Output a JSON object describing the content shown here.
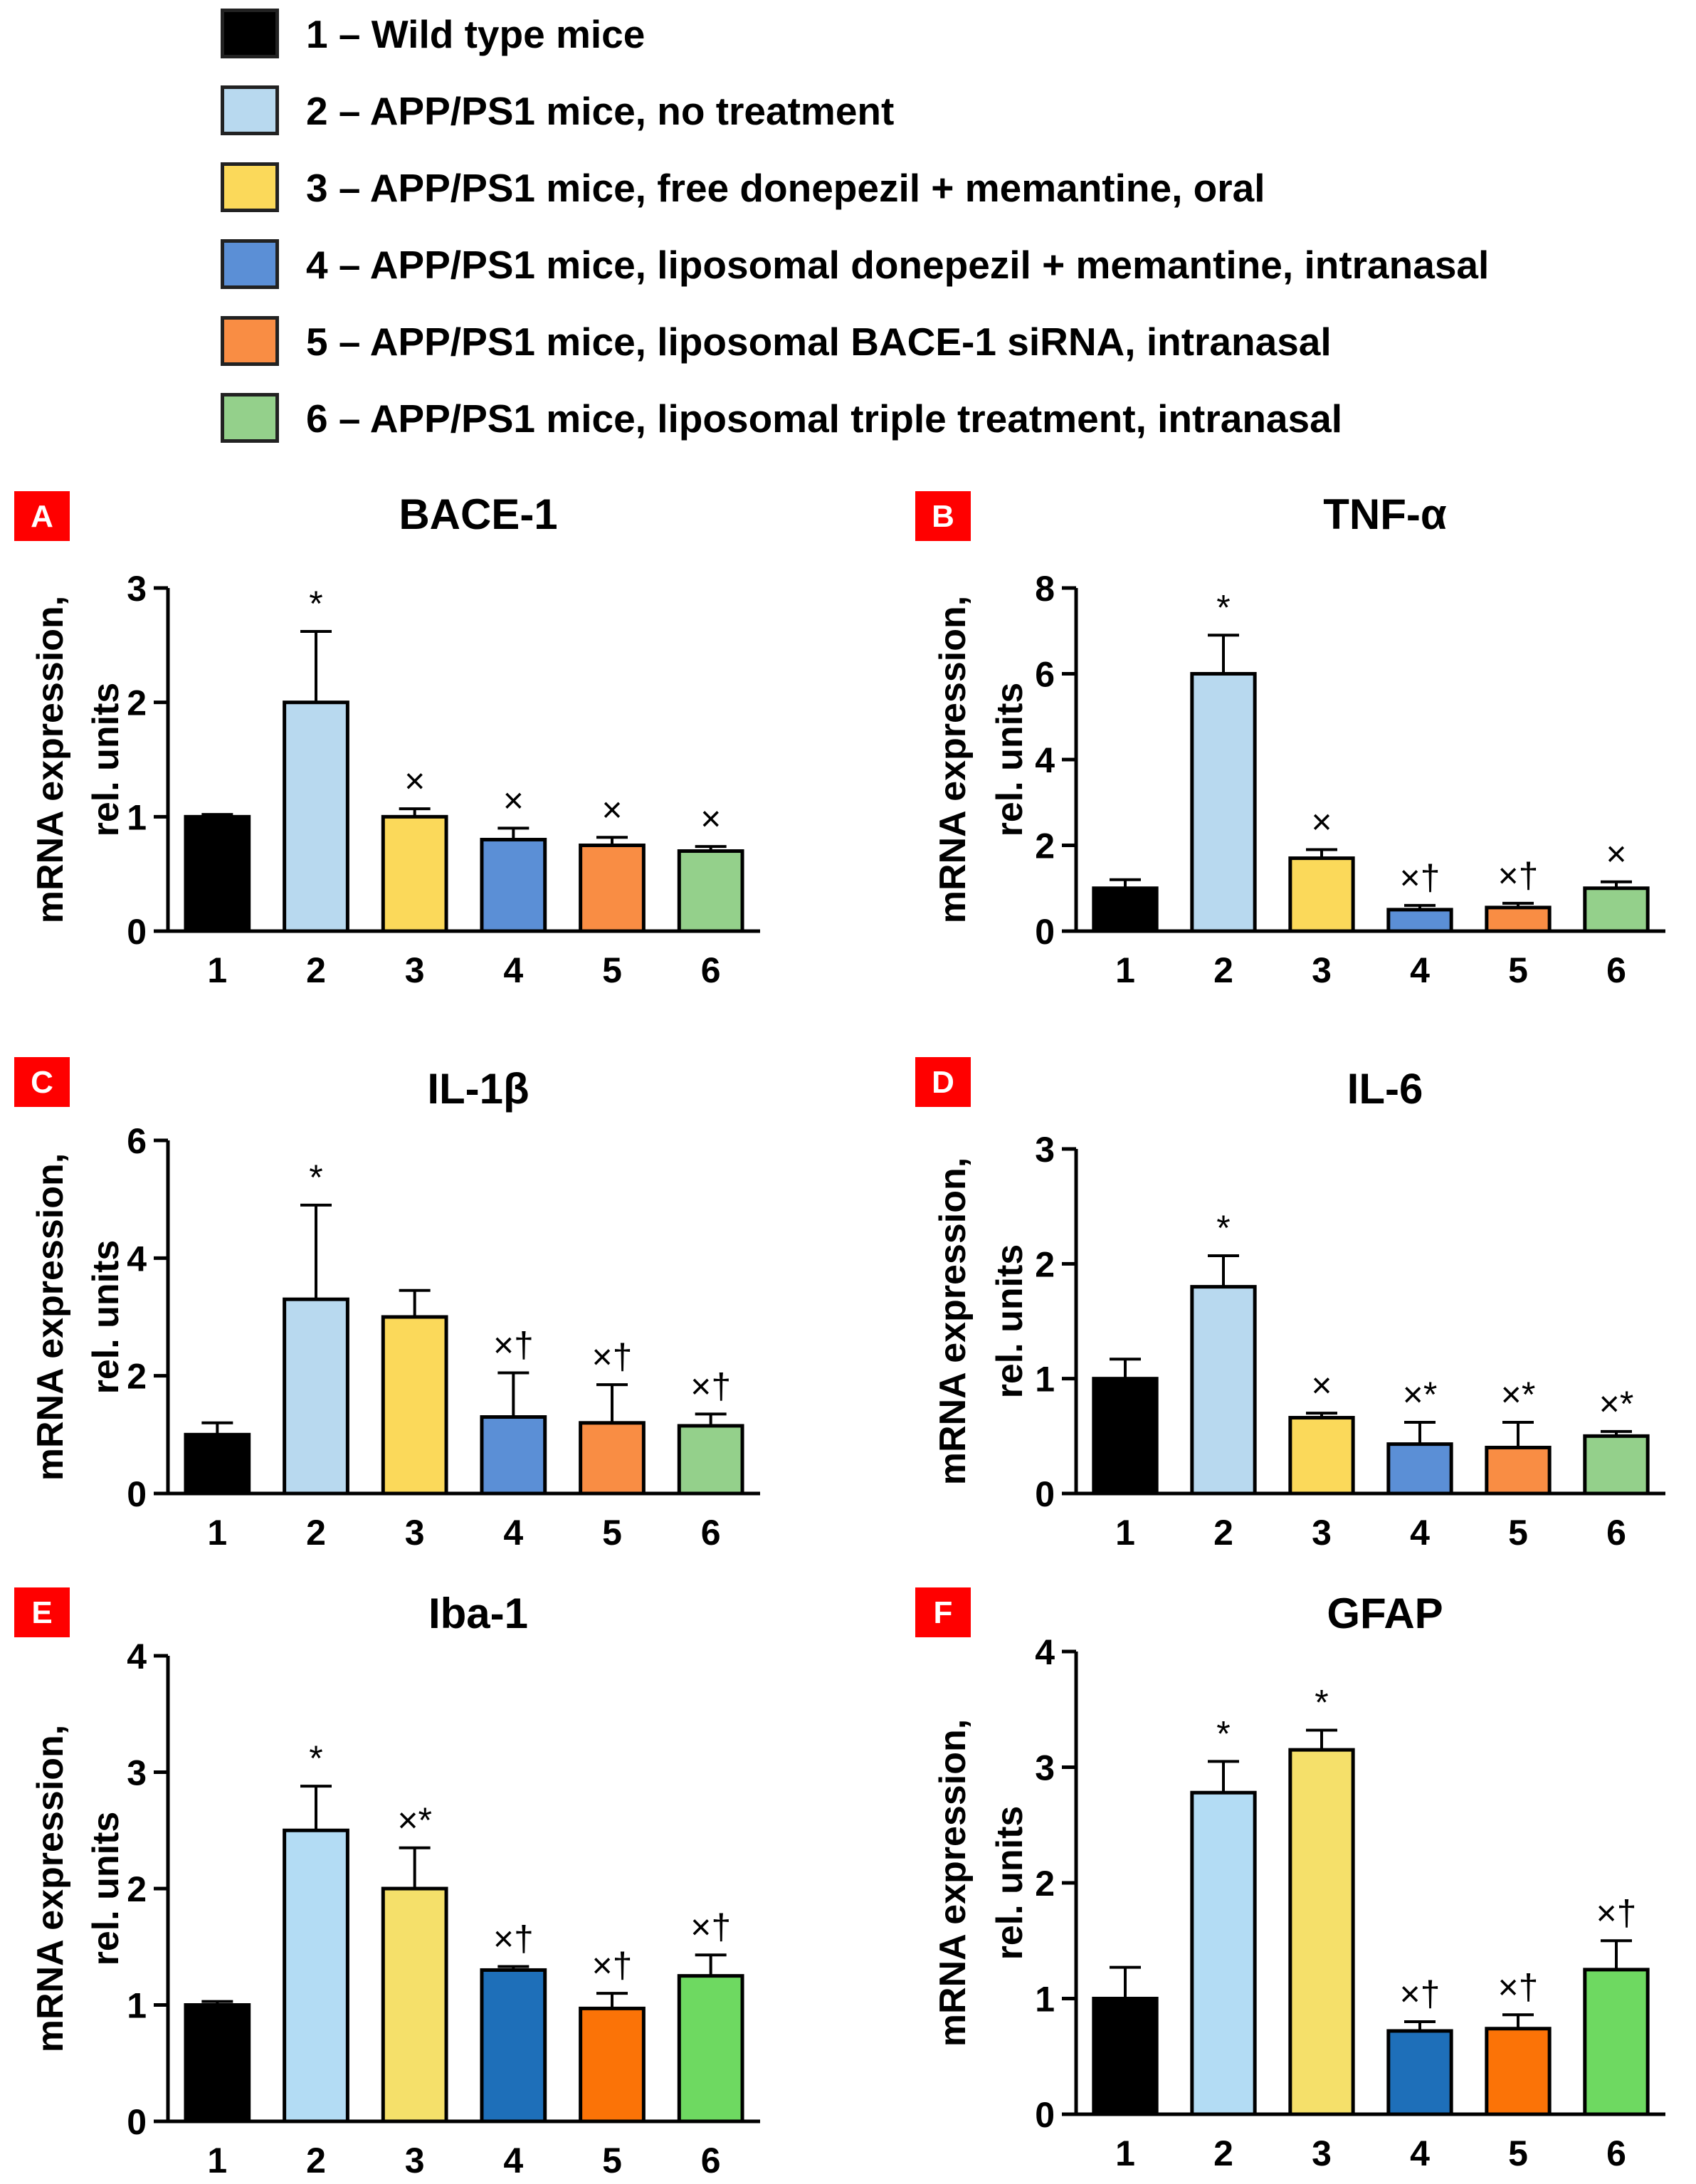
{
  "legend": [
    {
      "label": "1 – Wild type mice",
      "color": "#000000"
    },
    {
      "label": "2 – APP/PS1 mice, no treatment",
      "color": "#b8d9ef"
    },
    {
      "label": "3 – APP/PS1 mice, free donepezil + memantine, oral",
      "color": "#fbd95a"
    },
    {
      "label": "4 – APP/PS1 mice, liposomal donepezil + memantine, intranasal",
      "color": "#5b8fd6"
    },
    {
      "label": "5 – APP/PS1 mice, liposomal BACE-1 siRNA, intranasal",
      "color": "#f98d44"
    },
    {
      "label": "6 – APP/PS1 mice, liposomal triple treatment, intranasal",
      "color": "#94d08b"
    }
  ],
  "y_axis_label_line1": "mRNA expression,",
  "y_axis_label_line2": "rel. units",
  "chart_data": [
    {
      "panel": "A",
      "type": "bar",
      "title": "BACE-1",
      "categories": [
        "1",
        "2",
        "3",
        "4",
        "5",
        "6"
      ],
      "values": [
        1.0,
        2.0,
        1.0,
        0.8,
        0.75,
        0.7
      ],
      "errors": [
        0.02,
        0.62,
        0.07,
        0.1,
        0.07,
        0.04
      ],
      "annotations": [
        "",
        "*",
        "×",
        "×",
        "×",
        "×"
      ],
      "colors": [
        "#000000",
        "#b8d9ef",
        "#fbd95a",
        "#5b8fd6",
        "#f98d44",
        "#94d08b"
      ],
      "ylim": [
        0,
        3
      ],
      "yticks": [
        "0",
        "1",
        "2",
        "3"
      ],
      "xlabel": "",
      "ylabel": "mRNA expression, rel. units"
    },
    {
      "panel": "B",
      "type": "bar",
      "title": "TNF-α",
      "categories": [
        "1",
        "2",
        "3",
        "4",
        "5",
        "6"
      ],
      "values": [
        1.0,
        6.0,
        1.7,
        0.5,
        0.55,
        1.0
      ],
      "errors": [
        0.2,
        0.9,
        0.2,
        0.1,
        0.1,
        0.15
      ],
      "annotations": [
        "",
        "*",
        "×",
        "×†",
        "×†",
        "×"
      ],
      "colors": [
        "#000000",
        "#b8d9ef",
        "#fbd95a",
        "#5b8fd6",
        "#f98d44",
        "#94d08b"
      ],
      "ylim": [
        0,
        8
      ],
      "yticks": [
        "0",
        "2",
        "4",
        "6",
        "8"
      ],
      "xlabel": "",
      "ylabel": "mRNA expression, rel. units"
    },
    {
      "panel": "C",
      "type": "bar",
      "title": "IL-1β",
      "categories": [
        "1",
        "2",
        "3",
        "4",
        "5",
        "6"
      ],
      "values": [
        1.0,
        3.3,
        3.0,
        1.3,
        1.2,
        1.15
      ],
      "errors": [
        0.2,
        1.6,
        0.45,
        0.75,
        0.65,
        0.2
      ],
      "annotations": [
        "",
        "*",
        "",
        "×†",
        "×†",
        "×†"
      ],
      "colors": [
        "#000000",
        "#b8d9ef",
        "#fbd95a",
        "#5b8fd6",
        "#f98d44",
        "#94d08b"
      ],
      "ylim": [
        0,
        6
      ],
      "yticks": [
        "0",
        "2",
        "4",
        "6"
      ],
      "xlabel": "",
      "ylabel": "mRNA expression, rel. units"
    },
    {
      "panel": "D",
      "type": "bar",
      "title": "IL-6",
      "categories": [
        "1",
        "2",
        "3",
        "4",
        "5",
        "6"
      ],
      "values": [
        1.0,
        1.8,
        0.66,
        0.43,
        0.4,
        0.5
      ],
      "errors": [
        0.17,
        0.27,
        0.04,
        0.19,
        0.22,
        0.04
      ],
      "annotations": [
        "",
        "*",
        "×",
        "×*",
        "×*",
        "×*"
      ],
      "colors": [
        "#000000",
        "#b8d9ef",
        "#fbd95a",
        "#5b8fd6",
        "#f98d44",
        "#94d08b"
      ],
      "ylim": [
        0,
        3
      ],
      "yticks": [
        "0",
        "1",
        "2",
        "3"
      ],
      "xlabel": "",
      "ylabel": "mRNA expression, rel. units"
    },
    {
      "panel": "E",
      "type": "bar",
      "title": "Iba-1",
      "categories": [
        "1",
        "2",
        "3",
        "4",
        "5",
        "6"
      ],
      "values": [
        1.0,
        2.5,
        2.0,
        1.3,
        0.97,
        1.25
      ],
      "errors": [
        0.03,
        0.38,
        0.35,
        0.03,
        0.13,
        0.18
      ],
      "annotations": [
        "",
        "*",
        "×*",
        "×†",
        "×†",
        "×†"
      ],
      "colors": [
        "#000000",
        "#b3dcf4",
        "#f5e06a",
        "#1e6fb9",
        "#fb7307",
        "#6ed961"
      ],
      "ylim": [
        0,
        4
      ],
      "yticks": [
        "0",
        "1",
        "2",
        "3",
        "4"
      ],
      "xlabel": "",
      "ylabel": "mRNA expression, rel. units"
    },
    {
      "panel": "F",
      "type": "bar",
      "title": "GFAP",
      "categories": [
        "1",
        "2",
        "3",
        "4",
        "5",
        "6"
      ],
      "values": [
        1.0,
        2.78,
        3.15,
        0.72,
        0.74,
        1.25
      ],
      "errors": [
        0.27,
        0.27,
        0.17,
        0.08,
        0.12,
        0.25
      ],
      "annotations": [
        "",
        "*",
        "*",
        "×†",
        "×†",
        "×†"
      ],
      "colors": [
        "#000000",
        "#b3dcf4",
        "#f5e06a",
        "#1e6fb9",
        "#fb7307",
        "#6ed961"
      ],
      "ylim": [
        0,
        4
      ],
      "yticks": [
        "0",
        "1",
        "2",
        "3",
        "4"
      ],
      "xlabel": "",
      "ylabel": "mRNA expression, rel. units"
    }
  ]
}
